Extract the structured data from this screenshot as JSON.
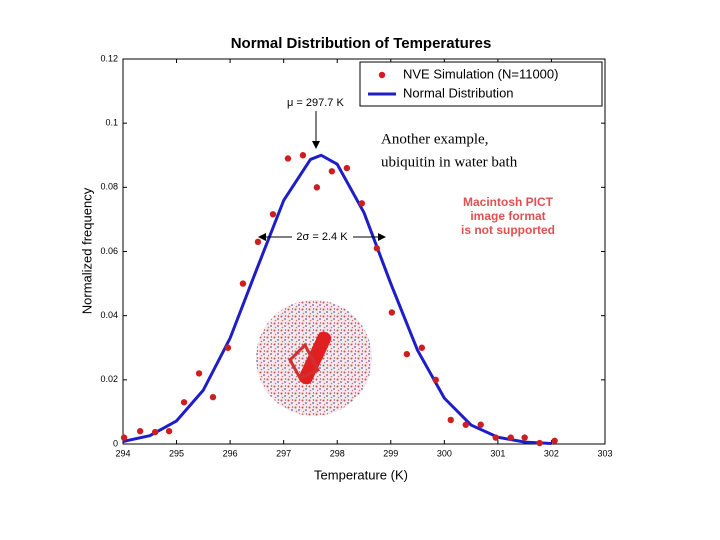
{
  "chart_data": {
    "type": "scatter",
    "title": "Normal Distribution of Temperatures",
    "xlabel": "Temperature (K)",
    "ylabel": "Normalized frequency",
    "xlim": [
      294,
      303
    ],
    "xticks": [
      294,
      295,
      296,
      297,
      298,
      299,
      300,
      301,
      302,
      303
    ],
    "ylim": [
      0,
      0.12
    ],
    "yticks": [
      0,
      0.02,
      0.04,
      0.06,
      0.08,
      0.1,
      0.12
    ],
    "legend": "upper right",
    "annotations": [
      "μ = 297.7 K",
      "2σ = 2.4 K"
    ],
    "series": [
      {
        "name": "NVE Simulation (N=11000)",
        "type": "scatter",
        "color": "#cc2020",
        "x": [
          294.02,
          294.32,
          294.6,
          294.86,
          295.14,
          295.42,
          295.68,
          295.96,
          296.24,
          296.52,
          296.8,
          297.08,
          297.36,
          297.62,
          297.9,
          298.18,
          298.46,
          298.74,
          299.02,
          299.3,
          299.58,
          299.84,
          300.12,
          300.4,
          300.68,
          300.96,
          301.24,
          301.5,
          301.78,
          302.06
        ],
        "values": [
          0.002,
          0.004,
          0.0037,
          0.004,
          0.013,
          0.022,
          0.0146,
          0.03,
          0.05,
          0.063,
          0.0716,
          0.089,
          0.09,
          0.08,
          0.085,
          0.086,
          0.075,
          0.061,
          0.041,
          0.028,
          0.03,
          0.02,
          0.0075,
          0.006,
          0.006,
          0.002,
          0.002,
          0.002,
          0.0003,
          0.001
        ]
      },
      {
        "name": "Normal Distribution",
        "type": "line",
        "color": "#1e1ec8",
        "x": [
          294,
          294.5,
          295,
          295.5,
          296,
          296.5,
          297,
          297.5,
          297.7,
          298,
          298.5,
          299,
          299.5,
          300,
          300.5,
          301,
          301.5,
          302
        ],
        "values": [
          0.00078,
          0.0026,
          0.0072,
          0.0168,
          0.033,
          0.0546,
          0.0759,
          0.0887,
          0.09,
          0.0872,
          0.0721,
          0.05,
          0.0292,
          0.0143,
          0.0059,
          0.0021,
          0.0006,
          0.00015
        ]
      }
    ]
  },
  "slide": {
    "caption": [
      "Another example,",
      "ubiquitin in water bath"
    ],
    "notice": [
      "Macintosh PICT",
      "image format",
      "is not supported"
    ]
  }
}
